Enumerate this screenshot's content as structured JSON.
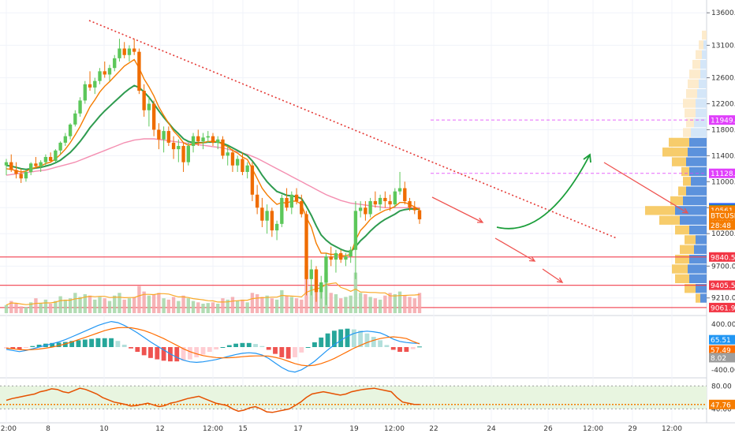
{
  "chart_data": {
    "type": "candlestick",
    "symbol": "BTCUSD",
    "price_axis": {
      "min": 9000,
      "max": 13700,
      "ticks": [
        "13600.00",
        "13100.00",
        "12600.00",
        "12200.00",
        "11800.00",
        "11400.00",
        "11000.00",
        "10600.00",
        "10200.00",
        "9700.00",
        "9210.00"
      ]
    },
    "time_axis": {
      "labels": [
        "12:00",
        "8",
        "10",
        "12",
        "12:00",
        "15",
        "17",
        "19",
        "12:00",
        "22",
        "24",
        "26",
        "12:00",
        "29",
        "12:00"
      ]
    },
    "price_tags": [
      {
        "label": "11949.23",
        "value": 11949.23,
        "color": "#e040fb",
        "style": "dashed"
      },
      {
        "label": "11128.50",
        "value": 11128.5,
        "color": "#e040fb",
        "style": "dashed"
      },
      {
        "label": "10598.51",
        "value": 10598.51,
        "color": "#2962ff"
      },
      {
        "label": "10570.62",
        "value": 10570.62,
        "color": "#26a650"
      },
      {
        "label": "10561.39",
        "value": 10561.39,
        "color": "#f57c00"
      },
      {
        "label": "10416.80",
        "value": 10416.8,
        "color": "#f57c00"
      },
      {
        "label": "28:48",
        "value": 10330,
        "color": "#f57c00"
      },
      {
        "label": "9840.59",
        "value": 9840.59,
        "color": "#f23645",
        "style": "solid"
      },
      {
        "label": "9405.59",
        "value": 9405.59,
        "color": "#f23645",
        "style": "solid"
      },
      {
        "label": "9061.94",
        "value": 9061.94,
        "color": "#f23645",
        "style": "solid"
      }
    ],
    "symbol_tag": {
      "label": "BTCUSD",
      "value": 10480,
      "color": "#f57c00"
    },
    "candles": [
      [
        11250,
        11350,
        11100,
        11300
      ],
      [
        11300,
        11420,
        11150,
        11180
      ],
      [
        11180,
        11300,
        11050,
        11120
      ],
      [
        11120,
        11200,
        10980,
        11050
      ],
      [
        11050,
        11180,
        11000,
        11150
      ],
      [
        11150,
        11300,
        11100,
        11280
      ],
      [
        11280,
        11380,
        11200,
        11240
      ],
      [
        11240,
        11330,
        11150,
        11300
      ],
      [
        11300,
        11420,
        11250,
        11380
      ],
      [
        11380,
        11450,
        11300,
        11320
      ],
      [
        11320,
        11500,
        11300,
        11480
      ],
      [
        11480,
        11620,
        11420,
        11600
      ],
      [
        11600,
        11750,
        11550,
        11700
      ],
      [
        11700,
        11900,
        11650,
        11880
      ],
      [
        11880,
        12100,
        11850,
        12050
      ],
      [
        12050,
        12300,
        12000,
        12250
      ],
      [
        12250,
        12550,
        12200,
        12500
      ],
      [
        12500,
        12700,
        12400,
        12450
      ],
      [
        12450,
        12600,
        12350,
        12550
      ],
      [
        12550,
        12750,
        12500,
        12700
      ],
      [
        12700,
        12850,
        12600,
        12650
      ],
      [
        12650,
        12800,
        12550,
        12750
      ],
      [
        12750,
        12950,
        12700,
        12900
      ],
      [
        12900,
        13200,
        12850,
        13050
      ],
      [
        13050,
        13150,
        12900,
        12950
      ],
      [
        12950,
        13100,
        12850,
        13050
      ],
      [
        13050,
        13200,
        12950,
        13000
      ],
      [
        13000,
        13050,
        12350,
        12400
      ],
      [
        12400,
        12500,
        12000,
        12100
      ],
      [
        12100,
        12300,
        11850,
        12200
      ],
      [
        12200,
        12250,
        11700,
        11800
      ],
      [
        11800,
        11900,
        11500,
        11650
      ],
      [
        11650,
        11850,
        11450,
        11780
      ],
      [
        11780,
        11850,
        11550,
        11600
      ],
      [
        11600,
        11700,
        11350,
        11500
      ],
      [
        11500,
        11650,
        11300,
        11550
      ],
      [
        11550,
        11600,
        11150,
        11300
      ],
      [
        11300,
        11600,
        11250,
        11550
      ],
      [
        11550,
        11750,
        11450,
        11700
      ],
      [
        11700,
        11800,
        11550,
        11620
      ],
      [
        11620,
        11750,
        11500,
        11680
      ],
      [
        11680,
        11780,
        11600,
        11700
      ],
      [
        11700,
        11750,
        11550,
        11600
      ],
      [
        11600,
        11700,
        11500,
        11650
      ],
      [
        11650,
        11700,
        11350,
        11400
      ],
      [
        11400,
        11550,
        11250,
        11450
      ],
      [
        11450,
        11500,
        11150,
        11250
      ],
      [
        11250,
        11400,
        11150,
        11350
      ],
      [
        11350,
        11450,
        11100,
        11150
      ],
      [
        11150,
        11300,
        11050,
        11250
      ],
      [
        11250,
        11300,
        10700,
        10800
      ],
      [
        10800,
        10950,
        10500,
        10600
      ],
      [
        10600,
        10750,
        10300,
        10400
      ],
      [
        10400,
        10650,
        10200,
        10550
      ],
      [
        10550,
        10600,
        10150,
        10250
      ],
      [
        10250,
        10400,
        10100,
        10350
      ],
      [
        10350,
        10800,
        10300,
        10750
      ],
      [
        10750,
        10900,
        10550,
        10600
      ],
      [
        10600,
        10850,
        10500,
        10800
      ],
      [
        10800,
        10900,
        10650,
        10700
      ],
      [
        10700,
        10800,
        10450,
        10500
      ],
      [
        10500,
        10550,
        9250,
        9500
      ],
      [
        9500,
        9800,
        9250,
        9650
      ],
      [
        9650,
        9700,
        9150,
        9300
      ],
      [
        9300,
        9550,
        9200,
        9450
      ],
      [
        9450,
        9900,
        9100,
        9850
      ],
      [
        9850,
        10000,
        9700,
        9800
      ],
      [
        9800,
        9950,
        9600,
        9900
      ],
      [
        9900,
        9950,
        9750,
        9800
      ],
      [
        9800,
        9900,
        9700,
        9850
      ],
      [
        9850,
        10000,
        9750,
        9950
      ],
      [
        9950,
        10700,
        9500,
        10550
      ],
      [
        10550,
        10700,
        10450,
        10600
      ],
      [
        10600,
        10700,
        10400,
        10500
      ],
      [
        10500,
        10750,
        10450,
        10700
      ],
      [
        10700,
        10850,
        10600,
        10650
      ],
      [
        10650,
        10800,
        10550,
        10750
      ],
      [
        10750,
        10850,
        10600,
        10700
      ],
      [
        10700,
        10800,
        10550,
        10650
      ],
      [
        10650,
        10900,
        10600,
        10850
      ],
      [
        10850,
        11150,
        10800,
        10900
      ],
      [
        10900,
        11000,
        10650,
        10700
      ],
      [
        10700,
        10750,
        10550,
        10600
      ],
      [
        10600,
        10700,
        10500,
        10560
      ],
      [
        10560,
        10600,
        10350,
        10420
      ]
    ],
    "ema_fast": [
      11200,
      11190,
      11170,
      11150,
      11160,
      11200,
      11220,
      11240,
      11280,
      11300,
      11350,
      11420,
      11500,
      11600,
      11720,
      11850,
      12000,
      12150,
      12260,
      12380,
      12470,
      12540,
      12620,
      12700,
      12780,
      12830,
      12880,
      12750,
      12580,
      12460,
      12320,
      12150,
      12020,
      11900,
      11780,
      11700,
      11600,
      11560,
      11580,
      11590,
      11600,
      11620,
      11620,
      11620,
      11570,
      11540,
      11480,
      11440,
      11380,
      11340,
      11200,
      11050,
      10900,
      10800,
      10720,
      10650,
      10680,
      10670,
      10700,
      10700,
      10650,
      10450,
      10300,
      10050,
      9900,
      9900,
      9880,
      9880,
      9860,
      9860,
      9880,
      10100,
      10250,
      10330,
      10420,
      10480,
      10520,
      10560,
      10580,
      10620,
      10680,
      10680,
      10650,
      10610,
      10570
    ],
    "ema_slow": [
      11250,
      11240,
      11220,
      11200,
      11190,
      11200,
      11210,
      11220,
      11240,
      11260,
      11290,
      11330,
      11390,
      11450,
      11530,
      11620,
      11720,
      11830,
      11920,
      12010,
      12090,
      12160,
      12230,
      12300,
      12370,
      12430,
      12480,
      12450,
      12380,
      12300,
      12200,
      12090,
      11990,
      11900,
      11810,
      11740,
      11660,
      11620,
      11600,
      11600,
      11600,
      11610,
      11610,
      11610,
      11590,
      11560,
      11520,
      11480,
      11440,
      11400,
      11320,
      11220,
      11100,
      11000,
      10920,
      10850,
      10820,
      10790,
      10780,
      10770,
      10740,
      10620,
      10480,
      10320,
      10180,
      10100,
      10040,
      10000,
      9960,
      9930,
      9920,
      10000,
      10090,
      10160,
      10240,
      10310,
      10370,
      10420,
      10460,
      10500,
      10550,
      10570,
      10580,
      10580,
      10575
    ],
    "sma_long": [
      11100,
      11110,
      11120,
      11130,
      11140,
      11150,
      11160,
      11170,
      11180,
      11200,
      11220,
      11240,
      11260,
      11280,
      11300,
      11330,
      11360,
      11390,
      11420,
      11450,
      11480,
      11510,
      11540,
      11570,
      11600,
      11620,
      11640,
      11650,
      11660,
      11660,
      11660,
      11650,
      11640,
      11630,
      11620,
      11610,
      11600,
      11590,
      11580,
      11570,
      11560,
      11550,
      11540,
      11530,
      11520,
      11500,
      11480,
      11460,
      11440,
      11420,
      11390,
      11360,
      11320,
      11280,
      11240,
      11200,
      11160,
      11120,
      11080,
      11040,
      11000,
      10960,
      10920,
      10880,
      10840,
      10800,
      10770,
      10740,
      10710,
      10690,
      10670,
      10660,
      10650,
      10640,
      10630,
      10620,
      10610,
      10600,
      10600,
      10600,
      10600,
      10600,
      10600,
      10600,
      10600
    ],
    "volume": [
      12,
      18,
      14,
      10,
      9,
      16,
      22,
      15,
      20,
      14,
      18,
      25,
      20,
      22,
      30,
      24,
      28,
      26,
      20,
      24,
      22,
      18,
      26,
      30,
      20,
      22,
      24,
      40,
      32,
      26,
      28,
      30,
      22,
      20,
      24,
      18,
      26,
      22,
      18,
      16,
      14,
      15,
      16,
      14,
      22,
      20,
      24,
      18,
      20,
      16,
      30,
      28,
      24,
      26,
      22,
      20,
      34,
      26,
      24,
      22,
      20,
      70,
      40,
      50,
      36,
      60,
      30,
      28,
      22,
      24,
      26,
      60,
      30,
      28,
      24,
      22,
      20,
      26,
      30,
      28,
      32,
      26,
      24,
      22,
      30
    ],
    "macd": {
      "ticks": [
        "400.00",
        "-400.00"
      ],
      "macd_value": "65.51",
      "signal_value": "57.49",
      "hist_value": "8.02",
      "macd_color": "#2196f3",
      "signal_color": "#ff6d00",
      "macd": [
        -40,
        -60,
        -80,
        -60,
        -30,
        0,
        30,
        60,
        90,
        130,
        180,
        230,
        280,
        330,
        380,
        420,
        450,
        430,
        380,
        320,
        250,
        170,
        90,
        20,
        -50,
        -120,
        -180,
        -230,
        -260,
        -270,
        -260,
        -240,
        -220,
        -190,
        -160,
        -130,
        -110,
        -100,
        -110,
        -140,
        -200,
        -280,
        -360,
        -420,
        -440,
        -400,
        -330,
        -250,
        -150,
        -50,
        40,
        120,
        190,
        240,
        270,
        280,
        270,
        250,
        200,
        140,
        100,
        80,
        70,
        65
      ],
      "signal": [
        -20,
        -30,
        -45,
        -50,
        -45,
        -35,
        -20,
        0,
        25,
        55,
        90,
        130,
        170,
        210,
        250,
        290,
        320,
        340,
        345,
        340,
        320,
        290,
        250,
        200,
        150,
        90,
        30,
        -30,
        -80,
        -120,
        -150,
        -170,
        -185,
        -190,
        -188,
        -180,
        -170,
        -160,
        -155,
        -155,
        -160,
        -180,
        -210,
        -250,
        -290,
        -320,
        -330,
        -320,
        -290,
        -250,
        -200,
        -140,
        -80,
        -20,
        30,
        80,
        120,
        150,
        170,
        180,
        170,
        150,
        100,
        57
      ]
    },
    "rsi": {
      "ticks": [
        "80.00",
        "40.00"
      ],
      "value_label": "47.76",
      "value": 47.76,
      "upper": 80,
      "lower": 40,
      "series": [
        55,
        58,
        60,
        62,
        64,
        66,
        70,
        72,
        75,
        74,
        70,
        68,
        72,
        76,
        74,
        70,
        66,
        60,
        56,
        52,
        50,
        48,
        45,
        46,
        48,
        50,
        47,
        44,
        46,
        50,
        52,
        55,
        58,
        60,
        62,
        58,
        54,
        50,
        48,
        46,
        40,
        36,
        38,
        42,
        44,
        40,
        35,
        34,
        36,
        38,
        40,
        46,
        52,
        60,
        66,
        68,
        70,
        68,
        66,
        64,
        66,
        70,
        72,
        74,
        75,
        76,
        74,
        72,
        70,
        60,
        52,
        50,
        48,
        47.76
      ]
    }
  }
}
